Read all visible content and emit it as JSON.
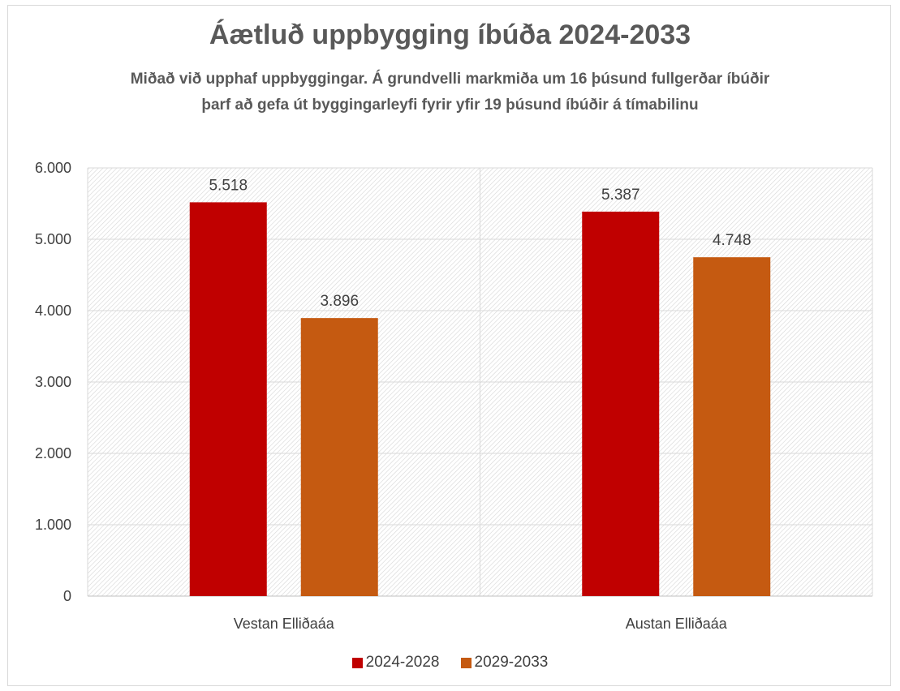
{
  "chart_data": {
    "type": "bar",
    "title": "Áætluð uppbygging íbúða 2024-2033",
    "subtitle": "Miðað við upphaf uppbyggingar. Á grundvelli markmiða um 16 þúsund fullgerðar íbúðir þarf að gefa út byggingarleyfi fyrir yfir 19 þúsund íbúðir á tímabilinu",
    "categories": [
      "Vestan Elliðaáa",
      "Austan Elliðaáa"
    ],
    "series": [
      {
        "name": "2024-2028",
        "values": [
          5518,
          5387
        ],
        "labels": [
          "5.518",
          "5.387"
        ],
        "color": "#c00000"
      },
      {
        "name": "2029-2033",
        "values": [
          3896,
          4748
        ],
        "labels": [
          "3.896",
          "4.748"
        ],
        "color": "#c55a11"
      }
    ],
    "yticks": [
      "0",
      "1.000",
      "2.000",
      "3.000",
      "4.000",
      "5.000",
      "6.000"
    ],
    "ylim": [
      0,
      6000
    ],
    "grid": true,
    "legend_position": "bottom"
  }
}
